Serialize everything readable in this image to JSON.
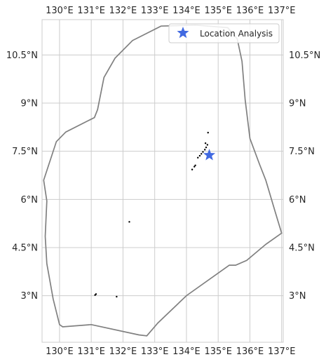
{
  "map": {
    "legend": {
      "label": "Location Analysis",
      "marker_color": "#4169E1"
    },
    "longitude_ticks": [
      {
        "value": 130,
        "label": "130°E"
      },
      {
        "value": 131,
        "label": "131°E"
      },
      {
        "value": 132,
        "label": "132°E"
      },
      {
        "value": 133,
        "label": "133°E"
      },
      {
        "value": 134,
        "label": "134°E"
      },
      {
        "value": 135,
        "label": "135°E"
      },
      {
        "value": 136,
        "label": "136°E"
      },
      {
        "value": 137,
        "label": "137°E"
      }
    ],
    "latitude_ticks": [
      {
        "value": 3,
        "label": "3°N"
      },
      {
        "value": 4.5,
        "label": "4.5°N"
      },
      {
        "value": 6,
        "label": "6°N"
      },
      {
        "value": 7.5,
        "label": "7.5°N"
      },
      {
        "value": 9,
        "label": "9°N"
      },
      {
        "value": 10.5,
        "label": "10.5°N"
      }
    ],
    "extent": {
      "lon_min": 129.45,
      "lon_max": 137.05,
      "lat_min": 1.55,
      "lat_max": 11.6
    },
    "location": {
      "lon": 134.72,
      "lat": 7.38
    },
    "boundary_color": "#808080",
    "boundary": [
      [
        134.3,
        11.43
      ],
      [
        135.3,
        11.35
      ],
      [
        135.6,
        11.0
      ],
      [
        135.75,
        10.3
      ],
      [
        135.85,
        9.1
      ],
      [
        136.0,
        7.9
      ],
      [
        136.3,
        7.1
      ],
      [
        136.5,
        6.6
      ],
      [
        136.8,
        5.6
      ],
      [
        137.0,
        4.95
      ],
      [
        136.5,
        4.6
      ],
      [
        135.9,
        4.1
      ],
      [
        135.55,
        3.95
      ],
      [
        135.35,
        3.95
      ],
      [
        134.0,
        3.0
      ],
      [
        133.1,
        2.15
      ],
      [
        132.75,
        1.75
      ],
      [
        132.5,
        1.78
      ],
      [
        131.0,
        2.1
      ],
      [
        130.1,
        2.03
      ],
      [
        130.0,
        2.1
      ],
      [
        129.8,
        2.9
      ],
      [
        129.6,
        4.0
      ],
      [
        129.55,
        4.85
      ],
      [
        129.6,
        5.95
      ],
      [
        129.5,
        6.6
      ],
      [
        129.9,
        7.8
      ],
      [
        130.2,
        8.1
      ],
      [
        131.1,
        8.55
      ],
      [
        131.2,
        8.8
      ],
      [
        131.4,
        9.8
      ],
      [
        131.75,
        10.4
      ],
      [
        132.3,
        10.95
      ],
      [
        133.2,
        11.4
      ]
    ],
    "islands": [
      [
        134.68,
        8.08
      ],
      [
        134.6,
        7.75
      ],
      [
        134.66,
        7.7
      ],
      [
        134.62,
        7.62
      ],
      [
        134.58,
        7.55
      ],
      [
        134.52,
        7.48
      ],
      [
        134.47,
        7.42
      ],
      [
        134.42,
        7.36
      ],
      [
        134.36,
        7.3
      ],
      [
        134.28,
        7.06
      ],
      [
        134.25,
        7.02
      ],
      [
        134.18,
        6.93
      ],
      [
        132.2,
        5.3
      ],
      [
        131.15,
        3.05
      ],
      [
        131.12,
        3.02
      ],
      [
        131.8,
        2.97
      ]
    ]
  }
}
